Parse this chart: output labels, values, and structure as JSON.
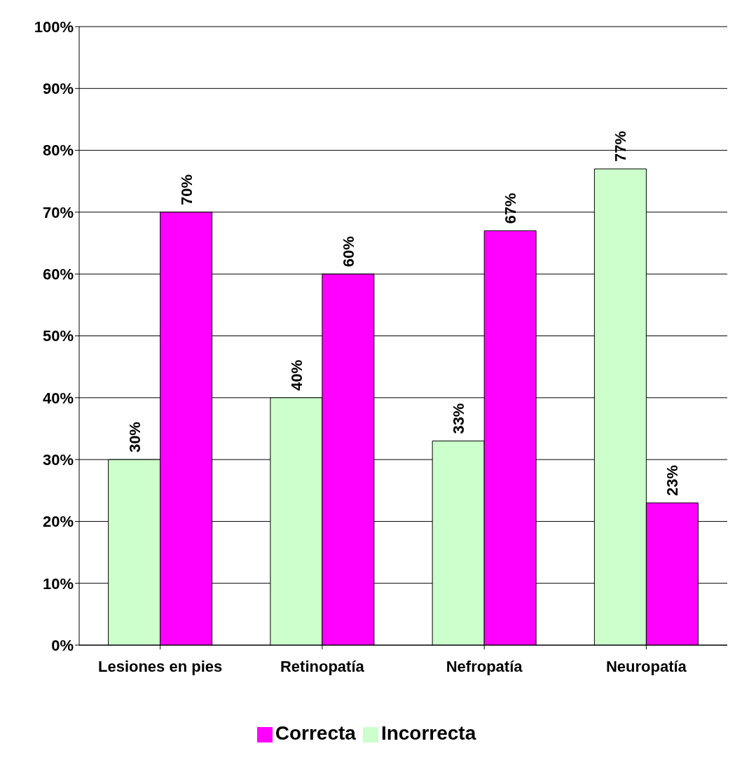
{
  "chart_data": {
    "type": "bar",
    "categories": [
      "Lesiones en pies",
      "Retinopatía",
      "Nefropatía",
      "Neuropatía"
    ],
    "series": [
      {
        "name": "Incorrecta",
        "color": "#ccffcc",
        "values": [
          30,
          40,
          33,
          77
        ],
        "value_labels": [
          "30%",
          "40%",
          "33%",
          "77%"
        ]
      },
      {
        "name": "Correcta",
        "color": "#ff00ff",
        "values": [
          70,
          60,
          67,
          23
        ],
        "value_labels": [
          "70%",
          "60%",
          "67%",
          "23%"
        ]
      }
    ],
    "ylim": [
      0,
      100
    ],
    "yticks": [
      {
        "value": 0,
        "label": "0%"
      },
      {
        "value": 10,
        "label": "10%"
      },
      {
        "value": 20,
        "label": "20%"
      },
      {
        "value": 30,
        "label": "30%"
      },
      {
        "value": 40,
        "label": "40%"
      },
      {
        "value": 50,
        "label": "50%"
      },
      {
        "value": 60,
        "label": "60%"
      },
      {
        "value": 70,
        "label": "70%"
      },
      {
        "value": 80,
        "label": "80%"
      },
      {
        "value": 90,
        "label": "90%"
      },
      {
        "value": 100,
        "label": "100%"
      }
    ],
    "grid": "y",
    "legend": "bottom"
  }
}
